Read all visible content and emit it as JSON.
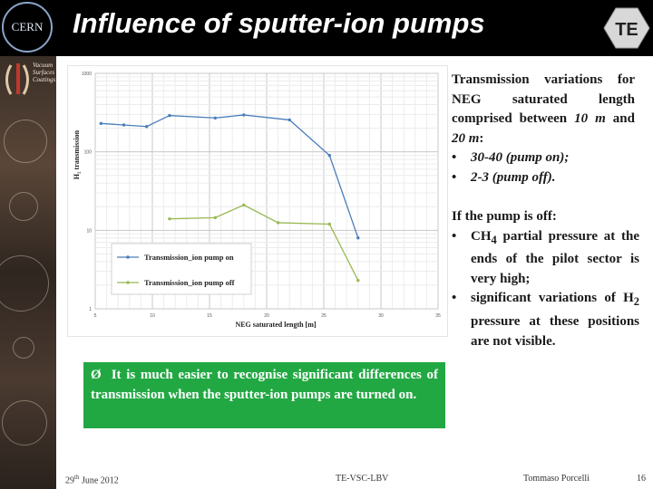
{
  "slide": {
    "title": "Influence of sputter-ion pumps",
    "cern_logo_text": "CERN",
    "te_logo_text": "TE",
    "iss_logo_lines": [
      "Vacuum",
      "Surfaces",
      "Coatings"
    ]
  },
  "right_text": {
    "para1_prefix": "Transmission variations for NEG saturated length comprised between ",
    "para1_v1": "10 m",
    "para1_mid": " and ",
    "para1_v2": "20 m",
    "para1_suffix": ":",
    "bullets1": [
      "30-40 (pump on);",
      "2-3 (pump off)."
    ],
    "para2": "If the pump is off:",
    "bullet2_1_pre": "CH",
    "bullet2_1_sub": "4",
    "bullet2_1_post": " partial pressure at the ends of the pilot sector is very high;",
    "bullet2_2_pre": "significant variations of H",
    "bullet2_2_sub": "2",
    "bullet2_2_post": " pressure at these positions are not visible."
  },
  "callout": {
    "arrow": "Ø",
    "text": "It is much easier to recognise significant differences of transmission when the sputter-ion pumps are turned on."
  },
  "footer": {
    "date_day": "29",
    "date_sup": "th",
    "date_rest": " June 2012",
    "center": "TE-VSC-LBV",
    "author": "Tommaso Porcelli",
    "page": "16"
  },
  "colors": {
    "series_on": "#4a7ebb",
    "series_off": "#98b954",
    "callout_bg": "#22a843"
  },
  "chart_data": {
    "type": "line",
    "xlabel": "NEG saturated length [m]",
    "ylabel": "H₂ transmission",
    "x_ticks": [
      "5",
      "10",
      "15",
      "20",
      "25",
      "30",
      "35"
    ],
    "y_ticks": [
      "1000",
      "100",
      "10",
      "1"
    ],
    "xlim": [
      5,
      35
    ],
    "ylim": [
      1,
      1000
    ],
    "y_scale": "log",
    "grid": true,
    "legend_position": "bottom-left",
    "series": [
      {
        "name": "Transmission_ion pump on",
        "x": [
          5.5,
          7.5,
          9.5,
          11.5,
          15.5,
          18,
          22,
          25.5,
          28
        ],
        "y": [
          230,
          220,
          210,
          290,
          270,
          295,
          255,
          90,
          8
        ]
      },
      {
        "name": "Transmission_ion pump off",
        "x": [
          11.5,
          15.5,
          18,
          21,
          25.5,
          28
        ],
        "y": [
          14,
          14.5,
          21,
          12.5,
          12,
          2.3
        ]
      }
    ]
  }
}
